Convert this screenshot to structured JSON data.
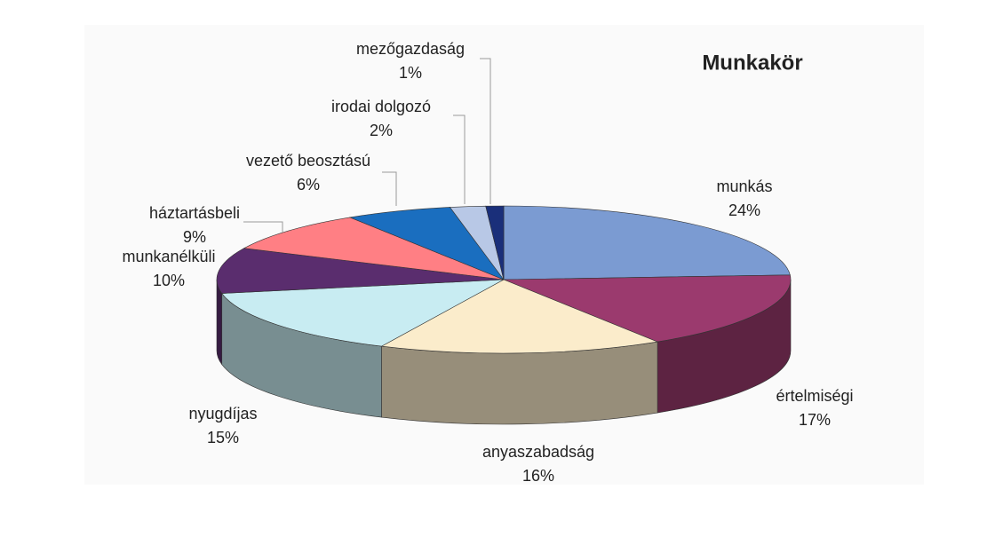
{
  "chart_data": {
    "type": "pie",
    "title": "Munkakör",
    "categories": [
      "munkás",
      "értelmiségi",
      "anyaszabadság",
      "nyugdíjas",
      "munkanélküli",
      "háztartásbeli",
      "vezető beosztású",
      "irodai dolgozó",
      "mezőgazdaság"
    ],
    "values": [
      24,
      17,
      16,
      15,
      10,
      9,
      6,
      2,
      1
    ],
    "value_labels": [
      "24%",
      "17%",
      "16%",
      "15%",
      "10%",
      "9%",
      "6%",
      "2%",
      "1%"
    ],
    "colors": [
      "#7b9bd2",
      "#9b3a6e",
      "#fbeccb",
      "#c8ecf2",
      "#5a2d6e",
      "#ff7f84",
      "#1a6ebf",
      "#b8c8e6",
      "#1a2f7a"
    ]
  }
}
